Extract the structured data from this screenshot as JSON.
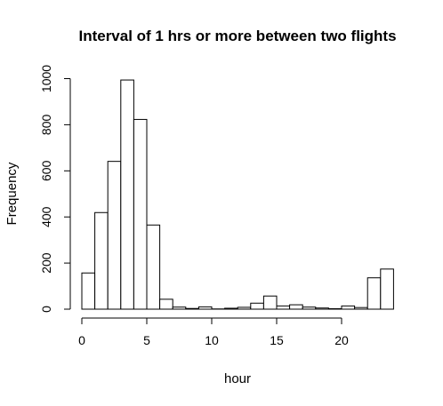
{
  "chart_data": {
    "type": "bar",
    "title": "Interval of 1 hrs or more between two flights",
    "xlabel": "hour",
    "ylabel": "Frequency",
    "bin_width": 1,
    "bin_edges": [
      0,
      1,
      2,
      3,
      4,
      5,
      6,
      7,
      8,
      9,
      10,
      11,
      12,
      13,
      14,
      15,
      16,
      17,
      18,
      19,
      20,
      21,
      22,
      23,
      24
    ],
    "values": [
      157,
      419,
      641,
      994,
      823,
      365,
      43,
      9,
      3,
      10,
      1,
      4,
      8,
      26,
      57,
      14,
      19,
      9,
      5,
      2,
      14,
      7,
      136,
      174
    ],
    "x_ticks": [
      0,
      5,
      10,
      15,
      20
    ],
    "x_tick_labels": [
      "0",
      "5",
      "10",
      "15",
      "20"
    ],
    "y_ticks": [
      0,
      200,
      400,
      600,
      800,
      1000
    ],
    "y_tick_labels": [
      "0",
      "200",
      "400",
      "600",
      "800",
      "1000"
    ],
    "xlim": [
      0,
      24
    ],
    "ylim": [
      0,
      1000
    ],
    "grid": false,
    "bar_fill": "#ffffff",
    "bar_stroke": "#000000"
  }
}
